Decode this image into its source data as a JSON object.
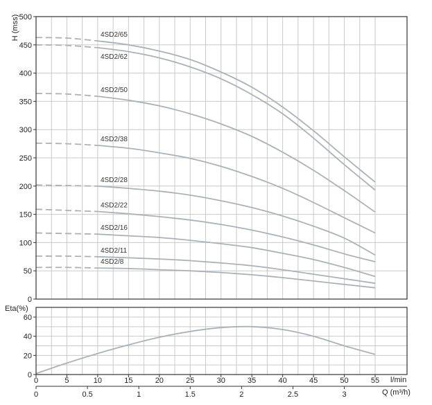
{
  "chart_data": [
    {
      "type": "line",
      "ylabel": "H (mss)",
      "xlim": [
        0,
        55
      ],
      "ylim": [
        0,
        500
      ],
      "yticks": [
        "0",
        "50",
        "100",
        "150",
        "200",
        "250",
        "300",
        "350",
        "400",
        "450",
        "500"
      ],
      "xgrid_step": 2.5,
      "grid": true,
      "curve_color": "#a9b2b9",
      "series": [
        {
          "name": "4SD2/65",
          "values": [
            [
              0,
              463
            ],
            [
              5,
              462
            ],
            [
              10,
              457
            ],
            [
              15,
              450
            ],
            [
              20,
              439
            ],
            [
              25,
              424
            ],
            [
              30,
              402
            ],
            [
              35,
              375
            ],
            [
              40,
              340
            ],
            [
              45,
              298
            ],
            [
              50,
              252
            ],
            [
              55,
              207
            ]
          ]
        },
        {
          "name": "4SD2/62",
          "values": [
            [
              0,
              450
            ],
            [
              5,
              449
            ],
            [
              10,
              445
            ],
            [
              15,
              438
            ],
            [
              20,
              427
            ],
            [
              25,
              411
            ],
            [
              30,
              390
            ],
            [
              35,
              362
            ],
            [
              40,
              328
            ],
            [
              45,
              285
            ],
            [
              50,
              238
            ],
            [
              55,
              193
            ]
          ]
        },
        {
          "name": "4SD2/50",
          "values": [
            [
              0,
              364
            ],
            [
              5,
              363
            ],
            [
              10,
              359
            ],
            [
              15,
              352
            ],
            [
              20,
              342
            ],
            [
              25,
              328
            ],
            [
              30,
              310
            ],
            [
              35,
              288
            ],
            [
              40,
              260
            ],
            [
              45,
              228
            ],
            [
              50,
              192
            ],
            [
              55,
              154
            ]
          ]
        },
        {
          "name": "4SD2/38",
          "values": [
            [
              0,
              276
            ],
            [
              5,
              275
            ],
            [
              10,
              272
            ],
            [
              15,
              267
            ],
            [
              20,
              259
            ],
            [
              25,
              249
            ],
            [
              30,
              235
            ],
            [
              35,
              217
            ],
            [
              40,
              196
            ],
            [
              45,
              171
            ],
            [
              50,
              144
            ],
            [
              55,
              117
            ]
          ]
        },
        {
          "name": "4SD2/28",
          "values": [
            [
              0,
              202
            ],
            [
              5,
              201
            ],
            [
              10,
              200
            ],
            [
              15,
              196
            ],
            [
              20,
              191
            ],
            [
              25,
              184
            ],
            [
              30,
              174
            ],
            [
              35,
              162
            ],
            [
              40,
              147
            ],
            [
              45,
              129
            ],
            [
              50,
              108
            ],
            [
              55,
              78
            ]
          ]
        },
        {
          "name": "4SD2/22",
          "values": [
            [
              0,
              159
            ],
            [
              5,
              157
            ],
            [
              10,
              155
            ],
            [
              15,
              151
            ],
            [
              20,
              146
            ],
            [
              25,
              140
            ],
            [
              30,
              132
            ],
            [
              35,
              122
            ],
            [
              40,
              110
            ],
            [
              45,
              96
            ],
            [
              50,
              80
            ],
            [
              55,
              66
            ]
          ]
        },
        {
          "name": "4SD2/16",
          "values": [
            [
              0,
              117
            ],
            [
              5,
              116
            ],
            [
              10,
              115
            ],
            [
              15,
              112
            ],
            [
              20,
              109
            ],
            [
              25,
              104
            ],
            [
              30,
              98
            ],
            [
              35,
              91
            ],
            [
              40,
              81
            ],
            [
              45,
              70
            ],
            [
              50,
              56
            ],
            [
              55,
              40
            ]
          ]
        },
        {
          "name": "4SD2/11",
          "values": [
            [
              0,
              76
            ],
            [
              5,
              76
            ],
            [
              10,
              75
            ],
            [
              15,
              73
            ],
            [
              20,
              71
            ],
            [
              25,
              68
            ],
            [
              30,
              64
            ],
            [
              35,
              59
            ],
            [
              40,
              52
            ],
            [
              45,
              44
            ],
            [
              50,
              36
            ],
            [
              55,
              28
            ]
          ]
        },
        {
          "name": "4SD2/8",
          "values": [
            [
              0,
              56
            ],
            [
              5,
              56
            ],
            [
              10,
              55
            ],
            [
              15,
              54
            ],
            [
              20,
              52
            ],
            [
              25,
              50
            ],
            [
              30,
              47
            ],
            [
              35,
              43
            ],
            [
              40,
              38
            ],
            [
              45,
              32
            ],
            [
              50,
              26
            ],
            [
              55,
              20
            ]
          ]
        }
      ]
    },
    {
      "type": "line",
      "ylabel": "Eta(%)",
      "xlim": [
        0,
        55
      ],
      "ylim": [
        0,
        65
      ],
      "yticks": [
        "0",
        "20",
        "40",
        "60"
      ],
      "x_lmin_ticks": [
        "0",
        "5",
        "10",
        "15",
        "20",
        "25",
        "30",
        "35",
        "40",
        "45",
        "50",
        "55"
      ],
      "x_lmin_unit": "l/min",
      "x_m3h_ticks": [
        {
          "label": "0",
          "value": 0
        },
        {
          "label": "0.5",
          "value": 0.5
        },
        {
          "label": "1",
          "value": 1
        },
        {
          "label": "1.5",
          "value": 1.5
        },
        {
          "label": "2",
          "value": 2
        },
        {
          "label": "2.5",
          "value": 2.5
        },
        {
          "label": "3",
          "value": 3
        }
      ],
      "x_m3h_unit": "Q (m³/h)",
      "series": [
        {
          "name": "",
          "values": [
            [
              0,
              1
            ],
            [
              5,
              12
            ],
            [
              10,
              22
            ],
            [
              15,
              31
            ],
            [
              20,
              39
            ],
            [
              25,
              45
            ],
            [
              30,
              49
            ],
            [
              35,
              50
            ],
            [
              40,
              47
            ],
            [
              45,
              40
            ],
            [
              50,
              30
            ],
            [
              55,
              21
            ]
          ]
        }
      ]
    }
  ]
}
